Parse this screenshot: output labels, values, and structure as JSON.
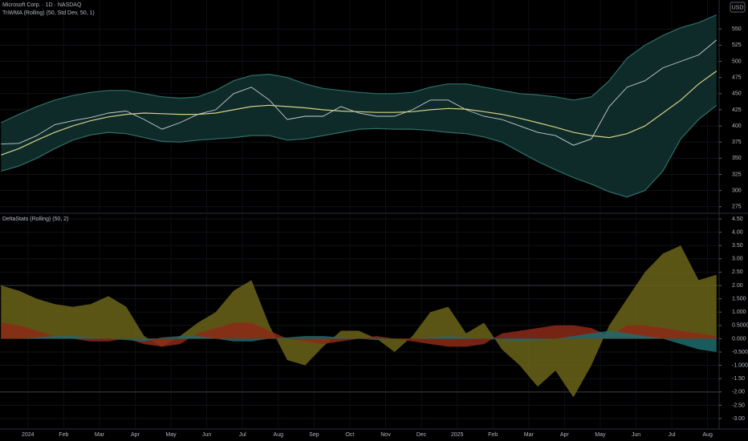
{
  "chart_data": [
    {
      "type": "line",
      "title": "Microsoft Corp. · 1D · NASDAQ",
      "subtitle": "TriWMA (Rolling) (50, Std Dev, 50, 1)",
      "currency": "USD",
      "x": [
        -0.75,
        -0.25,
        0.25,
        0.75,
        1.25,
        1.75,
        2.25,
        2.75,
        3.25,
        3.75,
        4.25,
        4.75,
        5.25,
        5.75,
        6.25,
        6.75,
        7.25,
        7.75,
        8.25,
        8.75,
        9.25,
        9.75,
        10.25,
        10.75,
        11.25,
        11.75,
        12.25,
        12.75,
        13.25,
        13.75,
        14.25,
        14.75,
        15.25,
        15.75,
        16.25,
        16.75,
        17.25,
        17.75,
        18.25,
        18.75,
        19.25
      ],
      "xlim": [
        -0.78,
        19.3
      ],
      "ylim": [
        266,
        595
      ],
      "yticks": [
        275,
        300,
        325,
        350,
        375,
        400,
        425,
        450,
        475,
        500,
        525,
        550
      ],
      "grid": true,
      "band_color": "#0e2b29",
      "series": [
        {
          "color": "#c9ccd3",
          "band": "none",
          "values": [
            372,
            373,
            385,
            402,
            408,
            413,
            420,
            423,
            410,
            395,
            405,
            418,
            425,
            450,
            460,
            440,
            410,
            415,
            415,
            430,
            420,
            415,
            415,
            425,
            440,
            440,
            425,
            415,
            410,
            400,
            390,
            385,
            370,
            380,
            430,
            460,
            470,
            490,
            500,
            510,
            533
          ]
        },
        {
          "color": "#2f6f67",
          "band": "upper",
          "values": [
            405,
            418,
            430,
            440,
            447,
            452,
            455,
            455,
            450,
            445,
            443,
            445,
            455,
            470,
            478,
            480,
            475,
            465,
            458,
            455,
            452,
            450,
            450,
            452,
            460,
            465,
            465,
            460,
            455,
            450,
            448,
            445,
            440,
            445,
            470,
            505,
            525,
            540,
            552,
            560,
            572
          ]
        },
        {
          "color": "#2f6f67",
          "band": "lower",
          "values": [
            330,
            338,
            350,
            365,
            378,
            386,
            390,
            388,
            382,
            376,
            375,
            378,
            380,
            382,
            385,
            385,
            378,
            380,
            385,
            390,
            395,
            396,
            395,
            395,
            393,
            390,
            388,
            383,
            375,
            360,
            345,
            332,
            320,
            310,
            298,
            290,
            300,
            330,
            380,
            410,
            432
          ]
        },
        {
          "color": "#d6cf86",
          "band": "none",
          "values": [
            355,
            365,
            378,
            390,
            400,
            408,
            414,
            418,
            420,
            419,
            418,
            418,
            420,
            425,
            430,
            432,
            430,
            428,
            425,
            423,
            422,
            421,
            421,
            422,
            425,
            427,
            426,
            422,
            418,
            412,
            405,
            398,
            390,
            385,
            382,
            388,
            400,
            420,
            440,
            465,
            485
          ]
        }
      ]
    },
    {
      "type": "area",
      "title": "DeltaStats (Rolling) (50, 2)",
      "x": [
        -0.75,
        -0.25,
        0.25,
        0.75,
        1.25,
        1.75,
        2.25,
        2.75,
        3.25,
        3.75,
        4.25,
        4.75,
        5.25,
        5.75,
        6.25,
        6.75,
        7.25,
        7.75,
        8.25,
        8.75,
        9.25,
        9.75,
        10.25,
        10.75,
        11.25,
        11.75,
        12.25,
        12.75,
        13.25,
        13.75,
        14.25,
        14.75,
        15.25,
        15.75,
        16.25,
        16.75,
        17.25,
        17.75,
        18.25,
        18.75,
        19.25
      ],
      "xlim": [
        -0.78,
        19.3
      ],
      "ylim": [
        -3.39,
        4.65
      ],
      "xticks": [
        {
          "value": 0,
          "label": "2024"
        },
        {
          "value": 1,
          "label": "Feb"
        },
        {
          "value": 2,
          "label": "Mar"
        },
        {
          "value": 3,
          "label": "Apr"
        },
        {
          "value": 4,
          "label": "May"
        },
        {
          "value": 5,
          "label": "Jun"
        },
        {
          "value": 6,
          "label": "Jul"
        },
        {
          "value": 7,
          "label": "Aug"
        },
        {
          "value": 8,
          "label": "Sep"
        },
        {
          "value": 9,
          "label": "Oct"
        },
        {
          "value": 10,
          "label": "Nov"
        },
        {
          "value": 11,
          "label": "Dec"
        },
        {
          "value": 12,
          "label": "2025"
        },
        {
          "value": 13,
          "label": "Feb"
        },
        {
          "value": 14,
          "label": "Mar"
        },
        {
          "value": 15,
          "label": "Apr"
        },
        {
          "value": 16,
          "label": "May"
        },
        {
          "value": 17,
          "label": "Jun"
        },
        {
          "value": 18,
          "label": "Jul"
        },
        {
          "value": 19,
          "label": "Aug"
        }
      ],
      "yticks": [
        {
          "value": 4.5,
          "label": "4.50"
        },
        {
          "value": 4,
          "label": "4.00"
        },
        {
          "value": 3.5,
          "label": "3.50"
        },
        {
          "value": 3,
          "label": "3.00"
        },
        {
          "value": 2.5,
          "label": "2.50"
        },
        {
          "value": 2,
          "label": "2.00"
        },
        {
          "value": 1.5,
          "label": "1.500"
        },
        {
          "value": 1,
          "label": "1.000"
        },
        {
          "value": 0.5,
          "label": "0.5000"
        },
        {
          "value": 0,
          "label": "0.000"
        },
        {
          "value": -0.5,
          "label": "-0.5000"
        },
        {
          "value": -1,
          "label": "-1.000"
        },
        {
          "value": -1.5,
          "label": "-1.50"
        },
        {
          "value": -2,
          "label": "-2.00"
        },
        {
          "value": -2.5,
          "label": "-2.50"
        },
        {
          "value": -3,
          "label": "-3.00"
        }
      ],
      "grid": true,
      "levels": [
        2,
        -2
      ],
      "series": [
        {
          "color": "#6b6419",
          "values": [
            2.0,
            1.8,
            1.5,
            1.3,
            1.2,
            1.3,
            1.6,
            1.2,
            0.1,
            -0.3,
            0.1,
            0.6,
            1.0,
            1.8,
            2.2,
            0.5,
            -0.8,
            -1.0,
            -0.3,
            0.3,
            0.3,
            0.0,
            -0.5,
            0.1,
            1.0,
            1.2,
            0.2,
            0.6,
            -0.4,
            -1.0,
            -1.8,
            -1.2,
            -2.2,
            -1.0,
            0.5,
            1.5,
            2.5,
            3.2,
            3.5,
            2.2,
            2.4
          ]
        },
        {
          "color": "#8c2a17",
          "values": [
            0.6,
            0.5,
            0.3,
            0.1,
            0.0,
            -0.1,
            -0.1,
            0.0,
            -0.2,
            -0.3,
            -0.2,
            0.2,
            0.4,
            0.6,
            0.6,
            0.3,
            0.0,
            -0.1,
            -0.2,
            -0.1,
            0.0,
            0.1,
            0.0,
            -0.1,
            -0.2,
            -0.3,
            -0.3,
            -0.2,
            0.2,
            0.3,
            0.4,
            0.5,
            0.5,
            0.4,
            0.1,
            0.5,
            0.5,
            0.4,
            0.3,
            0.2,
            0.1
          ]
        },
        {
          "color": "#1f6b6b",
          "values": [
            0,
            0,
            0.05,
            0.1,
            0.1,
            0.05,
            0,
            -0.05,
            -0.1,
            0.05,
            0.1,
            0.1,
            0,
            -0.1,
            -0.1,
            0,
            0.05,
            0.1,
            0.1,
            0.05,
            0,
            -0.05,
            0,
            0,
            0.05,
            0.1,
            0.05,
            0,
            -0.05,
            -0.1,
            -0.05,
            0,
            0.1,
            0.2,
            0.3,
            0.2,
            0.1,
            0,
            -0.2,
            -0.4,
            -0.5
          ]
        }
      ]
    }
  ]
}
